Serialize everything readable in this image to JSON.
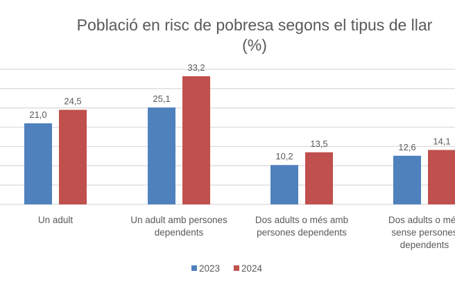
{
  "chart_data": {
    "type": "bar",
    "title": "Població en risc de pobresa segons el tipus de llar",
    "subtitle": "(%)",
    "categories": [
      [
        "Un adult"
      ],
      [
        "Un adult amb persones",
        "dependents"
      ],
      [
        "Dos adults o més amb",
        "persones dependents"
      ],
      [
        "Dos adults o més",
        "sense persones",
        "dependents"
      ]
    ],
    "series": [
      {
        "name": "2023",
        "color": "#4f81bd",
        "values": [
          21.0,
          25.1,
          10.2,
          12.6
        ],
        "labels": [
          "21,0",
          "25,1",
          "10,2",
          "12,6"
        ]
      },
      {
        "name": "2024",
        "color": "#c0504d",
        "values": [
          24.5,
          33.2,
          13.5,
          14.1
        ],
        "labels": [
          "24,5",
          "33,2",
          "13,5",
          "14,1"
        ]
      }
    ],
    "ylim": [
      0,
      35
    ],
    "ytick_step": 5,
    "grid": true,
    "legend": "bottom"
  }
}
